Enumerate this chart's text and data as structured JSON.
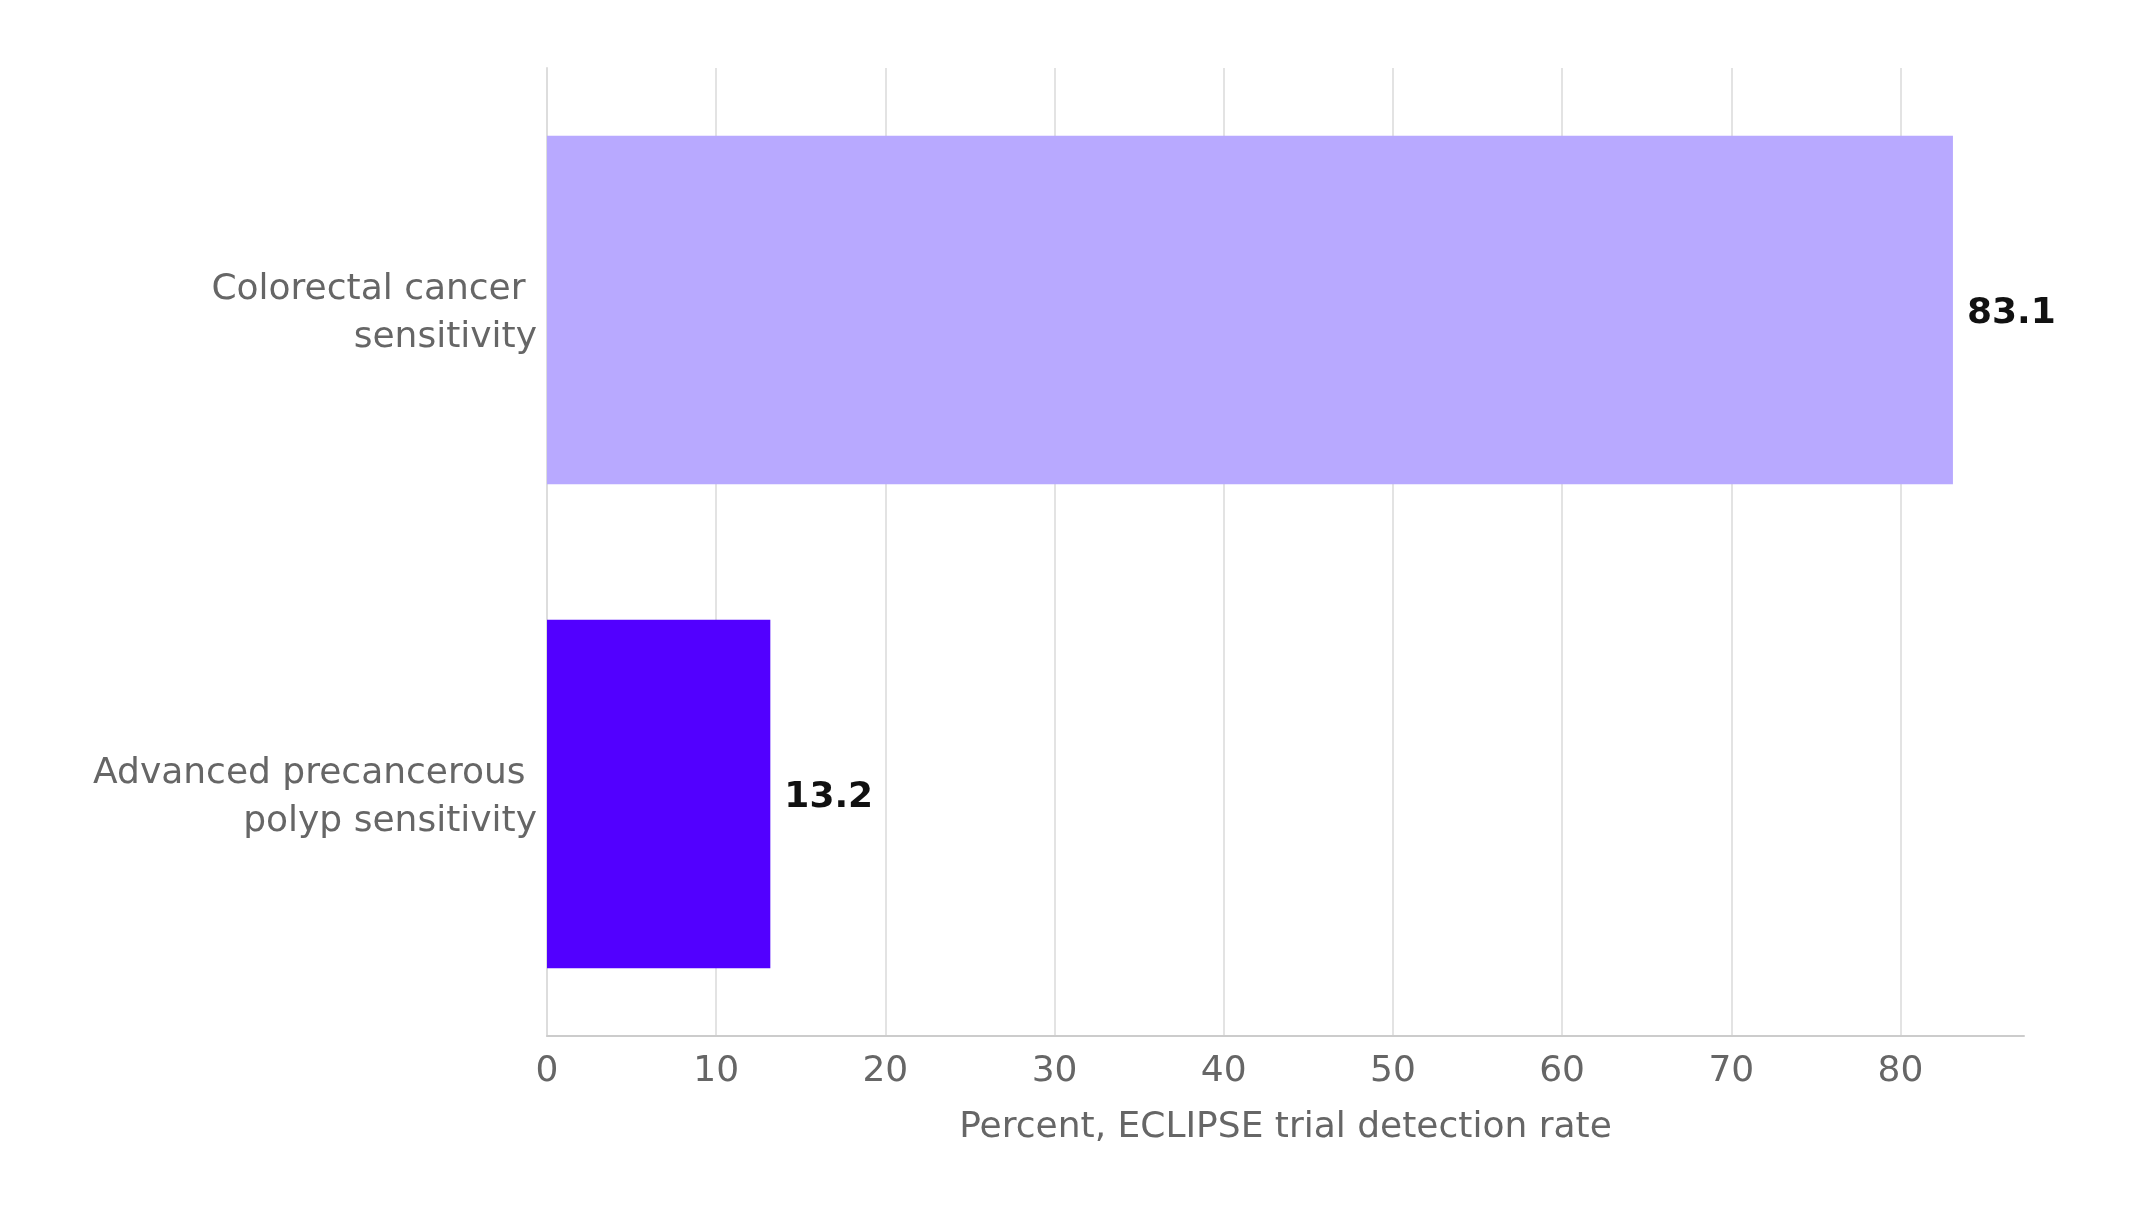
{
  "chart_data": {
    "type": "bar",
    "orientation": "horizontal",
    "categories": [
      "Colorectal cancer sensitivity",
      "Advanced precancerous polyp sensitivity"
    ],
    "values": [
      83.1,
      13.2
    ],
    "colors": [
      "#b8a9ff",
      "#5200ff"
    ],
    "xlabel": "Percent, ECLIPSE trial detection rate",
    "xlim": [
      0,
      87.3
    ],
    "xticks": [
      0,
      10,
      20,
      30,
      40,
      50,
      60,
      70,
      80
    ],
    "grid": "x",
    "data_labels": true
  }
}
